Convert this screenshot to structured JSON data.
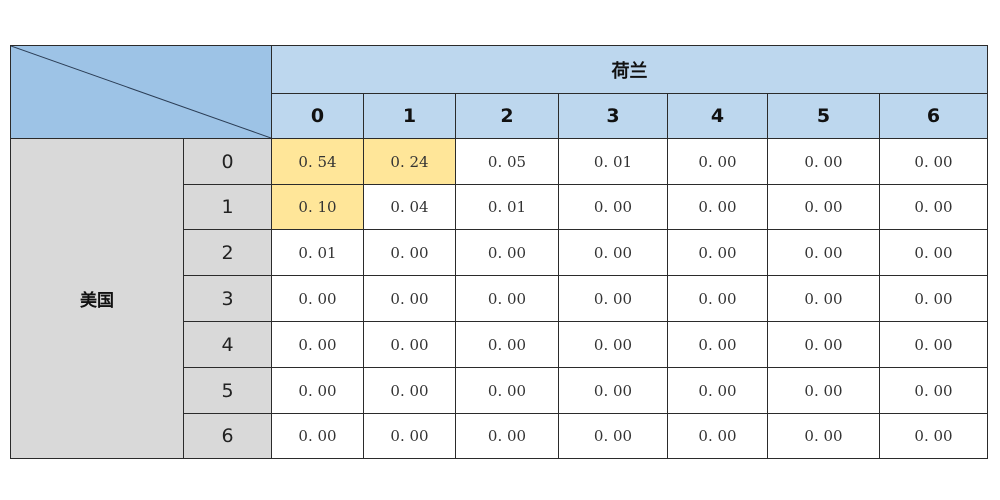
{
  "col_group_label": "荷兰",
  "row_group_label": "美国",
  "col_headers": [
    "0",
    "1",
    "2",
    "3",
    "4",
    "5",
    "6"
  ],
  "row_headers": [
    "0",
    "1",
    "2",
    "3",
    "4",
    "5",
    "6"
  ],
  "highlight_color": "#ffe699",
  "header_color": "#bdd7ee",
  "rows": [
    [
      "0. 54",
      "0. 24",
      "0. 05",
      "0. 01",
      "0. 00",
      "0. 00",
      "0. 00"
    ],
    [
      "0. 10",
      "0. 04",
      "0. 01",
      "0. 00",
      "0. 00",
      "0. 00",
      "0. 00"
    ],
    [
      "0. 01",
      "0. 00",
      "0. 00",
      "0. 00",
      "0. 00",
      "0. 00",
      "0. 00"
    ],
    [
      "0. 00",
      "0. 00",
      "0. 00",
      "0. 00",
      "0. 00",
      "0. 00",
      "0. 00"
    ],
    [
      "0. 00",
      "0. 00",
      "0. 00",
      "0. 00",
      "0. 00",
      "0. 00",
      "0. 00"
    ],
    [
      "0. 00",
      "0. 00",
      "0. 00",
      "0. 00",
      "0. 00",
      "0. 00",
      "0. 00"
    ],
    [
      "0. 00",
      "0. 00",
      "0. 00",
      "0. 00",
      "0. 00",
      "0. 00",
      "0. 00"
    ]
  ],
  "highlighted_cells": [
    [
      0,
      0
    ],
    [
      0,
      1
    ],
    [
      1,
      0
    ]
  ]
}
